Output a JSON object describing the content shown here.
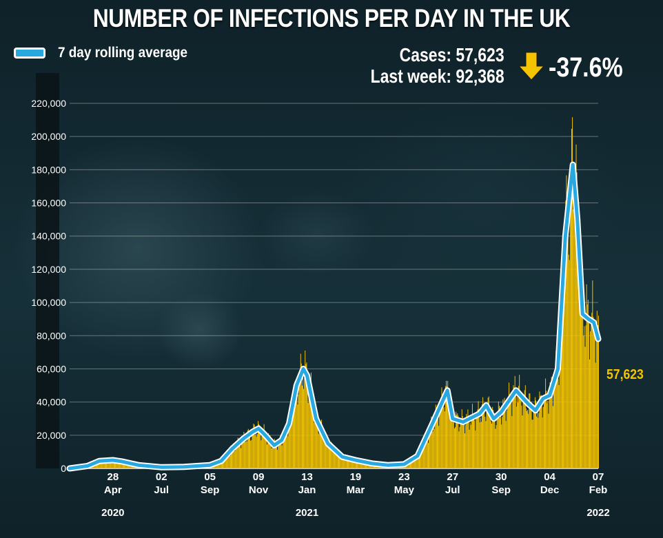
{
  "title": "NUMBER OF INFECTIONS PER DAY IN THE UK",
  "legend": {
    "label": "7 day rolling average",
    "color": "#29a8e0"
  },
  "stats": {
    "cases_line": "Cases: 57,623",
    "last_week_line": "Last week: 92,368",
    "change": "-37.6%",
    "change_icon": "down-arrow-icon",
    "change_color": "#f5c400"
  },
  "latest_label": "57,623",
  "chart_data": {
    "type": "bar",
    "bar_color": "#f5c400",
    "line_color": "#29a8e0",
    "title": "NUMBER OF INFECTIONS PER DAY IN THE UK",
    "xlabel": "",
    "ylabel": "",
    "ylim": [
      0,
      220000
    ],
    "y_ticks": [
      "0",
      "20,000",
      "40,000",
      "60,000",
      "80,000",
      "100,000",
      "120,000",
      "140,000",
      "160,000",
      "180,000",
      "200,000",
      "220,000"
    ],
    "y_tick_values": [
      0,
      20000,
      40000,
      60000,
      80000,
      100000,
      120000,
      140000,
      160000,
      180000,
      200000,
      220000
    ],
    "grid": true,
    "x_ticks": [
      {
        "day": "28",
        "month": "Apr",
        "date": "2020-04-28"
      },
      {
        "day": "02",
        "month": "Jul",
        "date": "2020-07-02"
      },
      {
        "day": "05",
        "month": "Sep",
        "date": "2020-09-05"
      },
      {
        "day": "09",
        "month": "Nov",
        "date": "2020-11-09"
      },
      {
        "day": "13",
        "month": "Jan",
        "date": "2021-01-13"
      },
      {
        "day": "19",
        "month": "Mar",
        "date": "2021-03-19"
      },
      {
        "day": "23",
        "month": "May",
        "date": "2021-05-23"
      },
      {
        "day": "27",
        "month": "Jul",
        "date": "2021-07-27"
      },
      {
        "day": "30",
        "month": "Sep",
        "date": "2021-09-30"
      },
      {
        "day": "04",
        "month": "Dec",
        "date": "2021-12-04"
      },
      {
        "day": "07",
        "month": "Feb",
        "date": "2022-02-07"
      }
    ],
    "year_labels": [
      {
        "label": "2020",
        "date": "2020-04-28"
      },
      {
        "label": "2021",
        "date": "2021-01-13"
      },
      {
        "label": "2022",
        "date": "2022-02-07"
      }
    ],
    "x_range": [
      "2020-03-01",
      "2022-02-07"
    ],
    "series": [
      {
        "name": "7 day rolling average",
        "points": [
          [
            "2020-03-01",
            0
          ],
          [
            "2020-03-25",
            1500
          ],
          [
            "2020-04-10",
            4500
          ],
          [
            "2020-04-28",
            5000
          ],
          [
            "2020-05-10",
            4200
          ],
          [
            "2020-06-01",
            2000
          ],
          [
            "2020-07-02",
            700
          ],
          [
            "2020-08-01",
            900
          ],
          [
            "2020-09-05",
            2000
          ],
          [
            "2020-09-20",
            4500
          ],
          [
            "2020-10-05",
            12000
          ],
          [
            "2020-10-20",
            18000
          ],
          [
            "2020-11-01",
            22000
          ],
          [
            "2020-11-09",
            24000
          ],
          [
            "2020-11-16",
            21000
          ],
          [
            "2020-11-30",
            14000
          ],
          [
            "2020-12-10",
            17000
          ],
          [
            "2020-12-20",
            27000
          ],
          [
            "2020-12-30",
            50000
          ],
          [
            "2021-01-08",
            60000
          ],
          [
            "2021-01-13",
            56000
          ],
          [
            "2021-01-25",
            30000
          ],
          [
            "2021-02-10",
            15000
          ],
          [
            "2021-03-01",
            7000
          ],
          [
            "2021-03-19",
            5000
          ],
          [
            "2021-04-10",
            3000
          ],
          [
            "2021-05-01",
            2000
          ],
          [
            "2021-05-23",
            2500
          ],
          [
            "2021-06-10",
            7500
          ],
          [
            "2021-07-01",
            28000
          ],
          [
            "2021-07-20",
            47000
          ],
          [
            "2021-07-27",
            30000
          ],
          [
            "2021-08-10",
            28000
          ],
          [
            "2021-09-01",
            33000
          ],
          [
            "2021-09-10",
            38000
          ],
          [
            "2021-09-20",
            30000
          ],
          [
            "2021-09-30",
            34000
          ],
          [
            "2021-10-20",
            47000
          ],
          [
            "2021-11-05",
            39000
          ],
          [
            "2021-11-15",
            35000
          ],
          [
            "2021-11-25",
            42000
          ],
          [
            "2021-12-04",
            44000
          ],
          [
            "2021-12-15",
            60000
          ],
          [
            "2021-12-25",
            140000
          ],
          [
            "2022-01-04",
            183000
          ],
          [
            "2022-01-10",
            150000
          ],
          [
            "2022-01-17",
            93000
          ],
          [
            "2022-01-25",
            90000
          ],
          [
            "2022-02-01",
            88000
          ],
          [
            "2022-02-07",
            78000
          ]
        ]
      }
    ]
  }
}
